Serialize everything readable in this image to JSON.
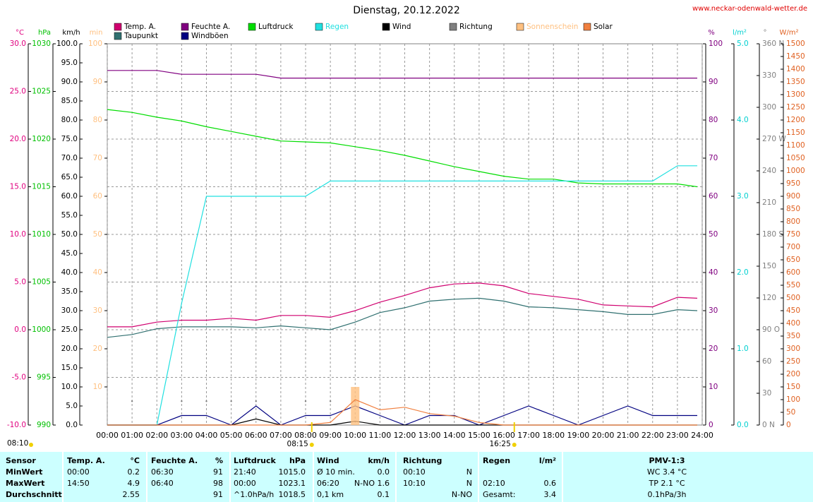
{
  "chart_data": {
    "type": "line",
    "title": "Dienstag, 20.12.2022",
    "source": "www.neckar-odenwald-wetter.de",
    "grid": true,
    "x": [
      0,
      1,
      2,
      3,
      4,
      5,
      6,
      7,
      8,
      9,
      10,
      11,
      12,
      13,
      14,
      15,
      16,
      17,
      18,
      19,
      20,
      21,
      22,
      23,
      23.8
    ],
    "xlim": [
      0,
      24
    ],
    "xticks": [
      {
        "value": 0,
        "label": "00:00"
      },
      {
        "value": 1,
        "label": "01:00"
      },
      {
        "value": 2,
        "label": "02:00"
      },
      {
        "value": 3,
        "label": "03:00"
      },
      {
        "value": 4,
        "label": "04:00"
      },
      {
        "value": 5,
        "label": "05:00"
      },
      {
        "value": 6,
        "label": "06:00"
      },
      {
        "value": 7,
        "label": "07:00"
      },
      {
        "value": 8,
        "label": "08:00"
      },
      {
        "value": 9,
        "label": "09:00"
      },
      {
        "value": 10,
        "label": "10:00"
      },
      {
        "value": 11,
        "label": "11:00"
      },
      {
        "value": 12,
        "label": "12:00"
      },
      {
        "value": 13,
        "label": "13:00"
      },
      {
        "value": 14,
        "label": "14:00"
      },
      {
        "value": 15,
        "label": "15:00"
      },
      {
        "value": 16,
        "label": "16:00"
      },
      {
        "value": 17,
        "label": "17:00"
      },
      {
        "value": 18,
        "label": "18:00"
      },
      {
        "value": 19,
        "label": "19:00"
      },
      {
        "value": 20,
        "label": "20:00"
      },
      {
        "value": 21,
        "label": "21:00"
      },
      {
        "value": 22,
        "label": "22:00"
      },
      {
        "value": 23,
        "label": "23:00"
      },
      {
        "value": 24,
        "label": "24:00"
      }
    ],
    "axes": [
      {
        "unit": "°C",
        "side": "left",
        "color": "#e0007f",
        "lim": [
          -10,
          30
        ],
        "ticks": [
          {
            "value": -10,
            "label": "-10.0"
          },
          {
            "value": -5,
            "label": "-5.0"
          },
          {
            "value": 0,
            "label": "0.0"
          },
          {
            "value": 5,
            "label": "5.0"
          },
          {
            "value": 10,
            "label": "10.0"
          },
          {
            "value": 15,
            "label": "15.0"
          },
          {
            "value": 20,
            "label": "20.0"
          },
          {
            "value": 25,
            "label": "25.0"
          },
          {
            "value": 30,
            "label": "30.0"
          }
        ]
      },
      {
        "unit": "hPa",
        "side": "left",
        "color": "#00c000",
        "lim": [
          990,
          1030
        ],
        "ticks": [
          990,
          995,
          1000,
          1005,
          1010,
          1015,
          1020,
          1025,
          1030
        ]
      },
      {
        "unit": "km/h",
        "side": "left",
        "color": "#000000",
        "lim": [
          0,
          100
        ],
        "ticks": [
          {
            "value": 0,
            "label": "0.0"
          },
          {
            "value": 5,
            "label": "5.0"
          },
          {
            "value": 10,
            "label": "10.0"
          },
          {
            "value": 15,
            "label": "15.0"
          },
          {
            "value": 20,
            "label": "20.0"
          },
          {
            "value": 25,
            "label": "25.0"
          },
          {
            "value": 30,
            "label": "30.0"
          },
          {
            "value": 35,
            "label": "35.0"
          },
          {
            "value": 40,
            "label": "40.0"
          },
          {
            "value": 45,
            "label": "45.0"
          },
          {
            "value": 50,
            "label": "50.0"
          },
          {
            "value": 55,
            "label": "55.0"
          },
          {
            "value": 60,
            "label": "60.0"
          },
          {
            "value": 65,
            "label": "65.0"
          },
          {
            "value": 70,
            "label": "70.0"
          },
          {
            "value": 75,
            "label": "75.0"
          },
          {
            "value": 80,
            "label": "80.0"
          },
          {
            "value": 85,
            "label": "85.0"
          },
          {
            "value": 90,
            "label": "90.0"
          },
          {
            "value": 95,
            "label": "95.0"
          },
          {
            "value": 100,
            "label": "100.0"
          }
        ]
      },
      {
        "unit": "min",
        "side": "left",
        "color": "#ffc080",
        "lim": [
          0,
          100
        ],
        "ticks": [
          10,
          20,
          30,
          40,
          50,
          60,
          70,
          80,
          90,
          100
        ]
      },
      {
        "unit": "%",
        "side": "right",
        "color": "#800080",
        "lim": [
          0,
          100
        ],
        "ticks": [
          0,
          10,
          20,
          30,
          40,
          50,
          60,
          70,
          80,
          90,
          100
        ]
      },
      {
        "unit": "l/m²",
        "side": "right",
        "color": "#00d0d0",
        "lim": [
          0,
          5
        ],
        "ticks": [
          {
            "value": 0,
            "label": "0.0"
          },
          {
            "value": 1,
            "label": "1.0"
          },
          {
            "value": 2,
            "label": "2.0"
          },
          {
            "value": 3,
            "label": "3.0"
          },
          {
            "value": 4,
            "label": "4.0"
          },
          {
            "value": 5,
            "label": "5.0"
          }
        ]
      },
      {
        "unit": "°",
        "side": "right",
        "color": "#808080",
        "lim": [
          0,
          360
        ],
        "ticks": [
          {
            "value": 0,
            "label": "0 N"
          },
          30,
          60,
          {
            "value": 90,
            "label": "90 O"
          },
          120,
          150,
          {
            "value": 180,
            "label": "180 S"
          },
          210,
          240,
          {
            "value": 270,
            "label": "270 W"
          },
          300,
          330,
          {
            "value": 360,
            "label": "360 N"
          }
        ]
      },
      {
        "unit": "W/m²",
        "side": "right",
        "color": "#e06020",
        "lim": [
          0,
          1500
        ],
        "ticks": [
          0,
          50,
          100,
          150,
          200,
          250,
          300,
          350,
          400,
          450,
          500,
          550,
          600,
          650,
          700,
          750,
          800,
          850,
          900,
          950,
          1000,
          1050,
          1100,
          1150,
          1200,
          1250,
          1300,
          1350,
          1400,
          1450,
          1500
        ]
      }
    ],
    "series": [
      {
        "name": "Temp. A.",
        "color": "#d0006f",
        "axis": 0,
        "values": [
          0.3,
          0.3,
          0.8,
          1.0,
          1.0,
          1.2,
          1.0,
          1.5,
          1.5,
          1.3,
          2.0,
          2.9,
          3.6,
          4.4,
          4.8,
          4.9,
          4.6,
          3.8,
          3.5,
          3.2,
          2.6,
          2.5,
          2.4,
          3.4,
          3.3
        ]
      },
      {
        "name": "Taupunkt",
        "color": "#307070",
        "axis": 0,
        "values": [
          -0.8,
          -0.5,
          0.1,
          0.3,
          0.3,
          0.3,
          0.2,
          0.4,
          0.2,
          0.0,
          0.8,
          1.8,
          2.3,
          3.0,
          3.2,
          3.3,
          3.0,
          2.4,
          2.3,
          2.1,
          1.9,
          1.6,
          1.6,
          2.1,
          2.0
        ]
      },
      {
        "name": "Feuchte A.",
        "color": "#800080",
        "axis": 4,
        "values": [
          93,
          93,
          93,
          92,
          92,
          92,
          92,
          91,
          91,
          91,
          91,
          91,
          91,
          91,
          91,
          91,
          91,
          91,
          91,
          91,
          91,
          91,
          91,
          91,
          91
        ]
      },
      {
        "name": "Windböen",
        "color": "#000080",
        "axis": 2,
        "values": [
          0,
          0,
          0,
          2.5,
          2.5,
          0,
          5.0,
          0,
          2.5,
          2.5,
          5.0,
          2.5,
          0,
          2.5,
          2.5,
          0,
          2.5,
          5.0,
          2.5,
          0,
          2.5,
          5.0,
          2.5,
          2.5,
          2.5
        ]
      },
      {
        "name": "Luftdruck",
        "color": "#00dd00",
        "axis": 1,
        "values": [
          1023.1,
          1022.8,
          1022.3,
          1021.9,
          1021.3,
          1020.8,
          1020.3,
          1019.8,
          1019.7,
          1019.6,
          1019.2,
          1018.8,
          1018.3,
          1017.7,
          1017.1,
          1016.6,
          1016.1,
          1015.8,
          1015.8,
          1015.4,
          1015.3,
          1015.3,
          1015.3,
          1015.3,
          1015.0
        ]
      },
      {
        "name": "Regen",
        "color": "#20e0e0",
        "axis": 5,
        "values": [
          0,
          0,
          0,
          1.6,
          3.0,
          3.0,
          3.0,
          3.0,
          3.0,
          3.2,
          3.2,
          3.2,
          3.2,
          3.2,
          3.2,
          3.2,
          3.2,
          3.2,
          3.2,
          3.2,
          3.2,
          3.2,
          3.2,
          3.4,
          3.4
        ]
      },
      {
        "name": "Wind",
        "color": "#000000",
        "axis": 2,
        "values": [
          0,
          0,
          0,
          0,
          0,
          0,
          1.6,
          0,
          0,
          0,
          1.0,
          0,
          0,
          0,
          0,
          0,
          0,
          0,
          0,
          0,
          0,
          0,
          0,
          0,
          0
        ]
      },
      {
        "name": "Richtung",
        "color": "#808080",
        "axis": 6,
        "values": [
          null,
          22.5,
          null,
          22.5,
          22.5,
          22.5,
          22.5,
          null,
          22.5,
          22.5,
          22.5,
          null,
          null,
          null,
          null,
          null,
          null,
          null,
          null,
          null,
          null,
          null,
          null,
          null,
          null
        ]
      },
      {
        "name": "Sonnenschein",
        "color": "#ffc080",
        "axis": 3,
        "values": [
          0,
          0,
          0,
          0,
          0,
          0,
          0,
          0,
          0,
          0,
          10,
          0,
          0,
          0,
          0,
          0,
          0,
          0,
          0,
          0,
          0,
          0,
          0,
          0,
          0
        ]
      },
      {
        "name": "Solar",
        "color": "#f08040",
        "axis": 7,
        "values": [
          0,
          0,
          0,
          0,
          0,
          0,
          0,
          0,
          0,
          10,
          100,
          60,
          70,
          45,
          35,
          10,
          0,
          0,
          0,
          0,
          0,
          0,
          0,
          0,
          0
        ]
      }
    ],
    "annotations": [
      {
        "x": 8.25,
        "label": "08:15"
      },
      {
        "x": 16.42,
        "label": "16:25"
      }
    ],
    "corner_note": "08:10"
  },
  "table": {
    "header": [
      "Sensor",
      "Temp. A.",
      "°C",
      "Feuchte A.",
      "%",
      "Luftdruck",
      "hPa",
      "Wind",
      "km/h",
      "Richtung",
      null,
      "Regen",
      "l/m²",
      "PMV-1:3"
    ],
    "rows": [
      [
        "MinWert",
        "00:00",
        "0.2",
        "06:30",
        "91",
        "21:40",
        "1015.0",
        "Ø 10 min.",
        "0.0",
        "00:10",
        "N",
        null,
        null,
        "WC 3.4 °C"
      ],
      [
        "MaxWert",
        "14:50",
        "4.9",
        "06:40",
        "98",
        "00:00",
        "1023.1",
        "06:20",
        "N-NO 1.6",
        "10:10",
        "N",
        "02:10",
        "0.6",
        "TP 2.1 °C"
      ],
      [
        "Durchschnitt",
        null,
        "2.55",
        null,
        "91",
        "^1.0hPa/h",
        "1018.5",
        "0,1 km",
        "0.1",
        null,
        "N-NO",
        "Gesamt:",
        "3.4",
        "0.1hPa/3h"
      ]
    ]
  }
}
